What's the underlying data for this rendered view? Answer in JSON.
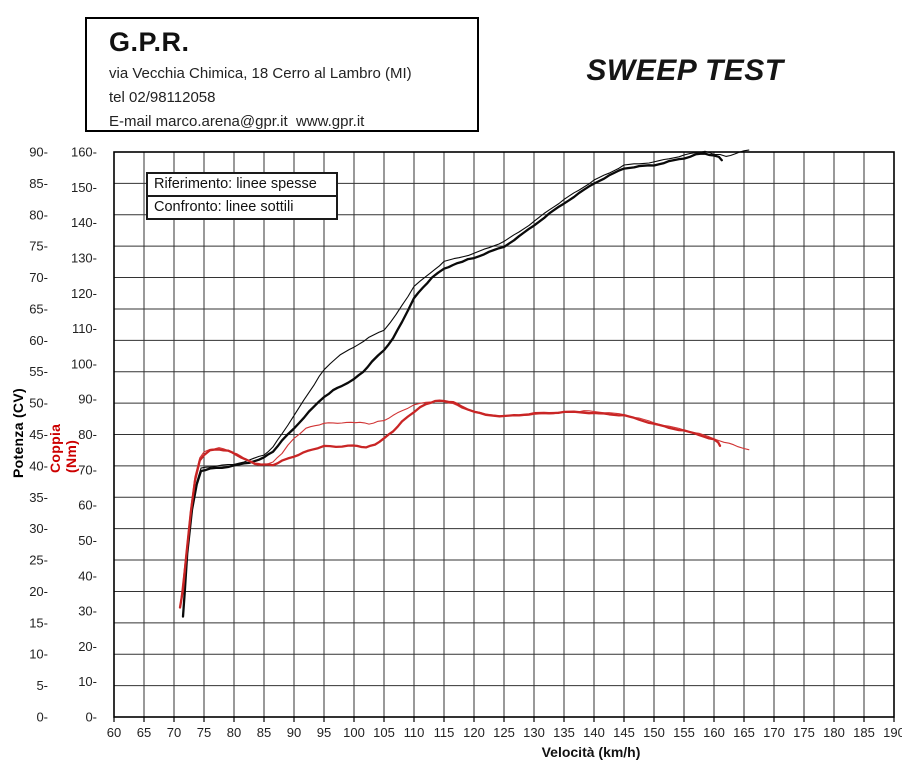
{
  "header": {
    "company": "G.P.R.",
    "address": "via Vecchia Chimica, 18 Cerro al Lambro (MI)",
    "tel": "tel 02/98112058",
    "email": "E-mail marco.arena@gpr.it  www.gpr.it"
  },
  "title": "SWEEP TEST",
  "legend": {
    "reference": "Riferimento: linee spesse",
    "comparison": "Confronto: linee sottili"
  },
  "colors": {
    "curve_black": "#0a0a0a",
    "curve_red": "#c92525",
    "grid": "#333333",
    "tick_text": "#222222",
    "torque_axis_label": "#cc0000"
  },
  "chart_data": {
    "type": "line",
    "title": "SWEEP TEST",
    "xlabel": "Velocità (km/h)",
    "x_range": [
      60,
      190
    ],
    "x_ticks": [
      60,
      65,
      70,
      75,
      80,
      85,
      90,
      95,
      100,
      105,
      110,
      115,
      120,
      125,
      130,
      135,
      140,
      145,
      150,
      155,
      160,
      165,
      170,
      175,
      180,
      185,
      190
    ],
    "y_left": {
      "label": "Potenza (CV)",
      "range": [
        0,
        90
      ],
      "ticks": [
        0,
        5,
        10,
        15,
        20,
        25,
        30,
        35,
        40,
        45,
        50,
        55,
        60,
        65,
        70,
        75,
        80,
        85,
        90
      ]
    },
    "y_right": {
      "label": "Coppia (Nm)",
      "range": [
        0,
        160
      ],
      "ticks": [
        0,
        10,
        20,
        30,
        40,
        50,
        60,
        70,
        80,
        90,
        100,
        110,
        120,
        130,
        140,
        150,
        160
      ]
    },
    "grid": {
      "vertical_every_kmh": 5,
      "horizontal_every_cv": 5
    },
    "legend_position": "top-left",
    "series": [
      {
        "name": "Potenza Confronto (linea sottile)",
        "axis": "left",
        "color": "#0a0a0a",
        "width": 1.1,
        "points": [
          [
            71.5,
            16
          ],
          [
            72.2,
            26.5
          ],
          [
            73,
            33.5
          ],
          [
            73.8,
            37.5
          ],
          [
            74.5,
            39.6
          ],
          [
            76,
            39.9
          ],
          [
            78,
            40.1
          ],
          [
            80,
            40.3
          ],
          [
            82.5,
            40.9
          ],
          [
            85,
            41.8
          ],
          [
            86.5,
            43
          ],
          [
            88,
            45.2
          ],
          [
            90,
            48
          ],
          [
            92.5,
            51.8
          ],
          [
            95,
            55.3
          ],
          [
            97,
            57.2
          ],
          [
            100,
            58.9
          ],
          [
            102.5,
            60.4
          ],
          [
            105,
            61.6
          ],
          [
            107,
            64
          ],
          [
            109,
            67
          ],
          [
            110,
            68.5
          ],
          [
            112,
            70.2
          ],
          [
            115,
            72.5
          ],
          [
            117.5,
            73.2
          ],
          [
            120,
            73.8
          ],
          [
            122.5,
            74.8
          ],
          [
            125,
            75.7
          ],
          [
            127.5,
            77.3
          ],
          [
            130,
            78.9
          ],
          [
            132.5,
            80.8
          ],
          [
            135,
            82.4
          ],
          [
            137.5,
            84
          ],
          [
            140,
            85.5
          ],
          [
            142.5,
            86.7
          ],
          [
            145,
            87.9
          ],
          [
            147.5,
            88.2
          ],
          [
            150,
            88.4
          ],
          [
            152.5,
            89
          ],
          [
            155,
            89.5
          ],
          [
            157,
            90
          ],
          [
            158.5,
            90.1
          ],
          [
            160,
            89.7
          ],
          [
            162,
            89.3
          ],
          [
            163.5,
            89.6
          ],
          [
            165,
            90.2
          ],
          [
            165.8,
            90.3
          ]
        ]
      },
      {
        "name": "Potenza Riferimento (linea spessa)",
        "axis": "left",
        "color": "#0a0a0a",
        "width": 2.3,
        "points": [
          [
            71.5,
            16
          ],
          [
            71.8,
            20
          ],
          [
            72.2,
            26
          ],
          [
            73,
            33
          ],
          [
            73.8,
            37
          ],
          [
            74.5,
            39.2
          ],
          [
            76,
            39.5
          ],
          [
            78,
            39.7
          ],
          [
            80,
            40
          ],
          [
            82.5,
            40.5
          ],
          [
            85,
            41.3
          ],
          [
            86.5,
            42.3
          ],
          [
            88,
            44
          ],
          [
            90,
            46
          ],
          [
            92.5,
            48.6
          ],
          [
            95,
            51
          ],
          [
            96.5,
            52
          ],
          [
            98,
            52.8
          ],
          [
            100,
            53.8
          ],
          [
            101.5,
            55
          ],
          [
            103,
            56.6
          ],
          [
            105,
            58.5
          ],
          [
            106.5,
            60.3
          ],
          [
            108,
            63
          ],
          [
            110,
            66.7
          ],
          [
            111.5,
            68.5
          ],
          [
            113,
            70
          ],
          [
            115,
            71.5
          ],
          [
            116.5,
            72
          ],
          [
            118,
            72.6
          ],
          [
            120,
            73.1
          ],
          [
            122.5,
            74
          ],
          [
            125,
            74.9
          ],
          [
            127.5,
            76.5
          ],
          [
            130,
            78.3
          ],
          [
            132.5,
            80.1
          ],
          [
            135,
            81.8
          ],
          [
            137.5,
            83.4
          ],
          [
            140,
            85
          ],
          [
            142.5,
            86.2
          ],
          [
            145,
            87.4
          ],
          [
            147.5,
            87.7
          ],
          [
            150,
            87.9
          ],
          [
            152.5,
            88.5
          ],
          [
            155,
            89
          ],
          [
            157,
            89.6
          ],
          [
            158.5,
            89.8
          ],
          [
            160,
            89.4
          ],
          [
            160.8,
            89.3
          ],
          [
            161.3,
            88.7
          ]
        ]
      },
      {
        "name": "Coppia Confronto (linea sottile)",
        "axis": "right",
        "color": "#d13535",
        "width": 1.1,
        "points": [
          [
            71,
            31
          ],
          [
            72,
            46
          ],
          [
            72.8,
            59
          ],
          [
            73.5,
            68
          ],
          [
            74.3,
            73.5
          ],
          [
            75,
            75
          ],
          [
            76,
            75.9
          ],
          [
            77.5,
            76.2
          ],
          [
            79,
            75.6
          ],
          [
            80.5,
            74.5
          ],
          [
            82,
            73
          ],
          [
            83.5,
            71.9
          ],
          [
            85,
            71.6
          ],
          [
            86.5,
            72.2
          ],
          [
            88,
            74.8
          ],
          [
            90,
            78.9
          ],
          [
            92,
            81.6
          ],
          [
            93.5,
            82.5
          ],
          [
            95,
            83
          ],
          [
            96.5,
            83.3
          ],
          [
            98,
            83.1
          ],
          [
            99.5,
            83.5
          ],
          [
            101,
            83.3
          ],
          [
            102.5,
            83
          ],
          [
            104,
            83.6
          ],
          [
            105,
            84
          ],
          [
            106.5,
            85.3
          ],
          [
            108,
            86.8
          ],
          [
            110,
            88.3
          ],
          [
            112,
            89.2
          ],
          [
            114,
            89.5
          ],
          [
            115,
            89.4
          ],
          [
            116.5,
            88.7
          ],
          [
            118,
            87.6
          ],
          [
            120,
            86.5
          ],
          [
            122,
            85.9
          ],
          [
            125,
            85.3
          ],
          [
            127.5,
            85.5
          ],
          [
            130,
            85.7
          ],
          [
            132.5,
            86
          ],
          [
            135,
            86.2
          ],
          [
            137.5,
            86.6
          ],
          [
            140,
            86.5
          ],
          [
            142.5,
            86
          ],
          [
            145,
            85.6
          ],
          [
            147.5,
            84.5
          ],
          [
            150,
            83.3
          ],
          [
            152.5,
            82.2
          ],
          [
            155,
            81.3
          ],
          [
            157.5,
            80.2
          ],
          [
            160,
            78.8
          ],
          [
            162.5,
            77.4
          ],
          [
            164,
            76.6
          ],
          [
            165.8,
            75.7
          ]
        ]
      },
      {
        "name": "Coppia Riferimento (linea spessa)",
        "axis": "right",
        "color": "#c92525",
        "width": 2.3,
        "points": [
          [
            71,
            31
          ],
          [
            71.5,
            36
          ],
          [
            72,
            45
          ],
          [
            72.8,
            58
          ],
          [
            73.5,
            67
          ],
          [
            74.3,
            72.5
          ],
          [
            75,
            74.2
          ],
          [
            76,
            75.4
          ],
          [
            77.5,
            75.8
          ],
          [
            79,
            75.3
          ],
          [
            80.5,
            74.2
          ],
          [
            82,
            72.8
          ],
          [
            83.5,
            71.7
          ],
          [
            85,
            71.4
          ],
          [
            86.5,
            71.4
          ],
          [
            88,
            72.5
          ],
          [
            90,
            73.8
          ],
          [
            91.5,
            74.8
          ],
          [
            93,
            75.8
          ],
          [
            95,
            76.7
          ],
          [
            97,
            76.6
          ],
          [
            99,
            76.8
          ],
          [
            100.5,
            76.9
          ],
          [
            102,
            76.3
          ],
          [
            103.5,
            77.3
          ],
          [
            105,
            78.9
          ],
          [
            106.5,
            81
          ],
          [
            108,
            83.7
          ],
          [
            110,
            86.5
          ],
          [
            112,
            88.6
          ],
          [
            113.5,
            89.3
          ],
          [
            115,
            89.5
          ],
          [
            116.5,
            89
          ],
          [
            118,
            87.9
          ],
          [
            120,
            86.3
          ],
          [
            122,
            85.6
          ],
          [
            125,
            85.1
          ],
          [
            127.5,
            85.5
          ],
          [
            130,
            85.9
          ],
          [
            132.5,
            86.1
          ],
          [
            135,
            86.3
          ],
          [
            137.5,
            86.4
          ],
          [
            140,
            86
          ],
          [
            142.5,
            85.8
          ],
          [
            145,
            85.4
          ],
          [
            147.5,
            84.3
          ],
          [
            150,
            83
          ],
          [
            152.5,
            82
          ],
          [
            155,
            81.1
          ],
          [
            157.5,
            80
          ],
          [
            160,
            78.6
          ],
          [
            160.7,
            77.9
          ],
          [
            161,
            76.8
          ]
        ]
      }
    ]
  }
}
